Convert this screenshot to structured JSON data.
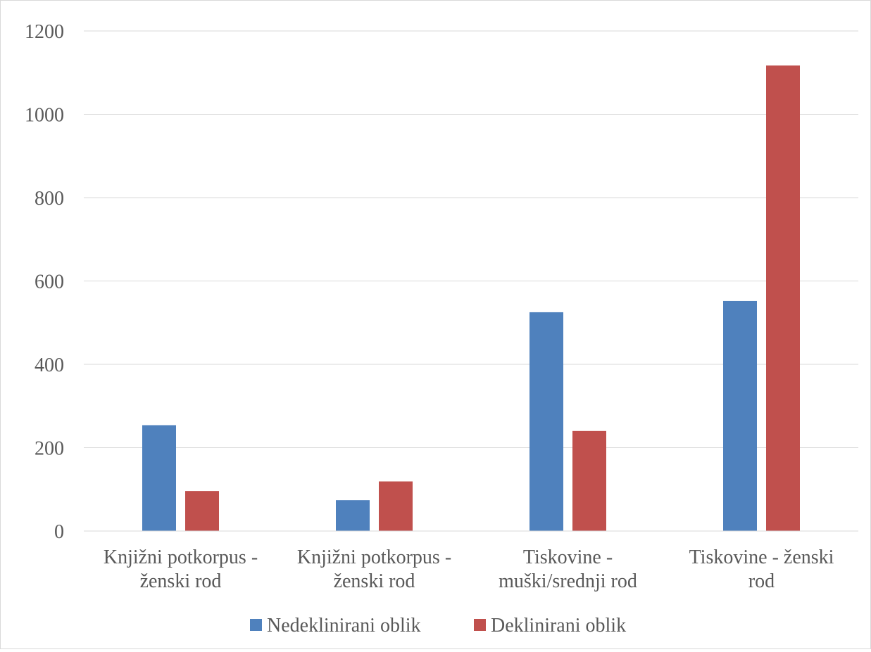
{
  "chart_data": {
    "type": "bar",
    "categories": [
      [
        "Knjižni potkorpus -",
        "ženski rod"
      ],
      [
        "Knjižni potkorpus -",
        "ženski rod"
      ],
      [
        "Tiskovine -",
        "muški/srednji rod"
      ],
      [
        "Tiskovine - ženski",
        "rod"
      ]
    ],
    "series": [
      {
        "name": "Nedeklinirani oblik",
        "color": "#4f81bd",
        "values": [
          254,
          74,
          525,
          552
        ]
      },
      {
        "name": "Deklinirani oblik",
        "color": "#c0504d",
        "values": [
          96,
          119,
          240,
          1117
        ]
      }
    ],
    "ylim": [
      0,
      1200
    ],
    "yticks": [
      "0",
      "200",
      "400",
      "600",
      "800",
      "1000",
      "1200"
    ],
    "grid": true,
    "legend_position": "bottom"
  }
}
